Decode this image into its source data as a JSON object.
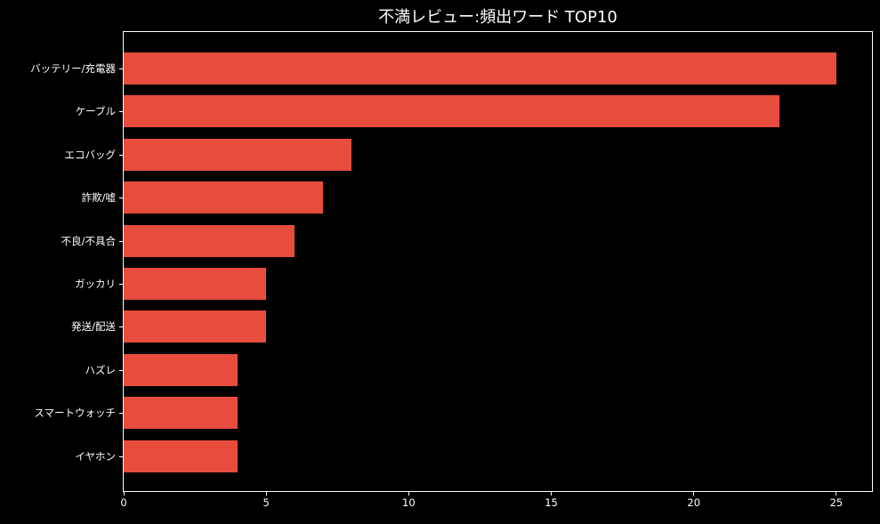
{
  "chart_data": {
    "type": "bar",
    "orientation": "horizontal",
    "title": "不満レビュー:頻出ワード TOP10",
    "categories": [
      "バッテリー/充電器",
      "ケーブル",
      "エコバッグ",
      "詐欺/嘘",
      "不良/不具合",
      "ガッカリ",
      "発送/配送",
      "ハズレ",
      "スマートウォッチ",
      "イヤホン"
    ],
    "values": [
      25,
      23,
      8,
      7,
      6,
      5,
      5,
      4,
      4,
      4
    ],
    "xlabel": "",
    "ylabel": "",
    "xlim": [
      0,
      26.25
    ],
    "x_ticks": [
      0,
      5,
      10,
      15,
      20,
      25
    ],
    "x_tick_labels": [
      "0",
      "5",
      "10",
      "15",
      "20",
      "25"
    ],
    "grid": false,
    "legend": null,
    "colors": {
      "bar": "#e74c3c",
      "background": "#000000",
      "text": "#ffffff",
      "spine": "#ffffff"
    }
  }
}
